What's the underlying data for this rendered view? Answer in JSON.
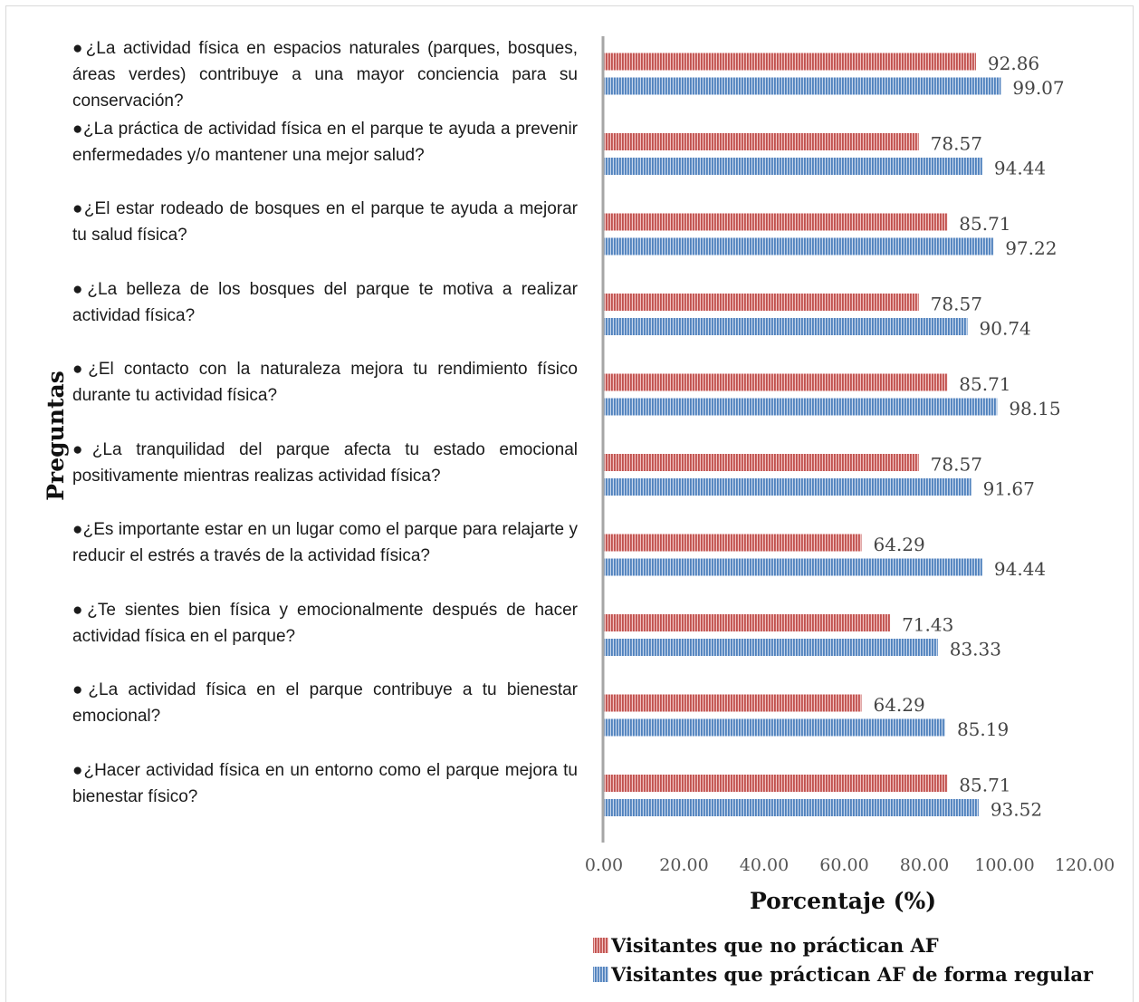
{
  "chart_data": {
    "type": "bar",
    "orientation": "horizontal",
    "xlabel": "Porcentaje (%)",
    "ylabel": "Preguntas",
    "xlim": [
      0,
      120
    ],
    "xticks": [
      "0.00",
      "20.00",
      "40.00",
      "60.00",
      "80.00",
      "100.00",
      "120.00"
    ],
    "legend_position": "bottom",
    "categories": [
      "●¿La actividad física en espacios naturales (parques, bosques, áreas verdes) contribuye a una mayor conciencia para su conservación?",
      "●¿La práctica de actividad física en el parque te ayuda a prevenir enfermedades y/o mantener una mejor salud?",
      "●¿El estar rodeado de bosques en el parque te ayuda a mejorar tu salud física?",
      "●¿La belleza de los bosques del parque te motiva a realizar actividad física?",
      "●¿El contacto con la naturaleza mejora tu rendimiento físico durante tu actividad física?",
      "●¿La tranquilidad del parque afecta tu estado emocional positivamente mientras realizas actividad física?",
      "●¿Es importante estar en un lugar como el parque para relajarte y reducir el estrés a través de la actividad física?",
      "●¿Te sientes bien física y emocionalmente después de hacer actividad física en el parque?",
      "●¿La actividad física en el parque contribuye a tu bienestar emocional?",
      "●¿Hacer actividad física en un entorno como el parque mejora tu bienestar físico?"
    ],
    "series": [
      {
        "name": "Visitantes que no práctican AF",
        "color": "#c0504d",
        "values": [
          92.86,
          78.57,
          85.71,
          78.57,
          85.71,
          78.57,
          64.29,
          71.43,
          64.29,
          85.71
        ],
        "labels": [
          "92.86",
          "78.57",
          "85.71",
          "78.57",
          "85.71",
          "78.57",
          "64.29",
          "71.43",
          "64.29",
          "85.71"
        ]
      },
      {
        "name": "Visitantes que práctican AF de forma regular",
        "color": "#4f81bd",
        "values": [
          99.07,
          94.44,
          97.22,
          90.74,
          98.15,
          91.67,
          94.44,
          83.33,
          85.19,
          93.52
        ],
        "labels": [
          "99.07",
          "94.44",
          "97.22",
          "90.74",
          "98.15",
          "91.67",
          "94.44",
          "83.33",
          "85.19",
          "93.52"
        ]
      }
    ]
  }
}
